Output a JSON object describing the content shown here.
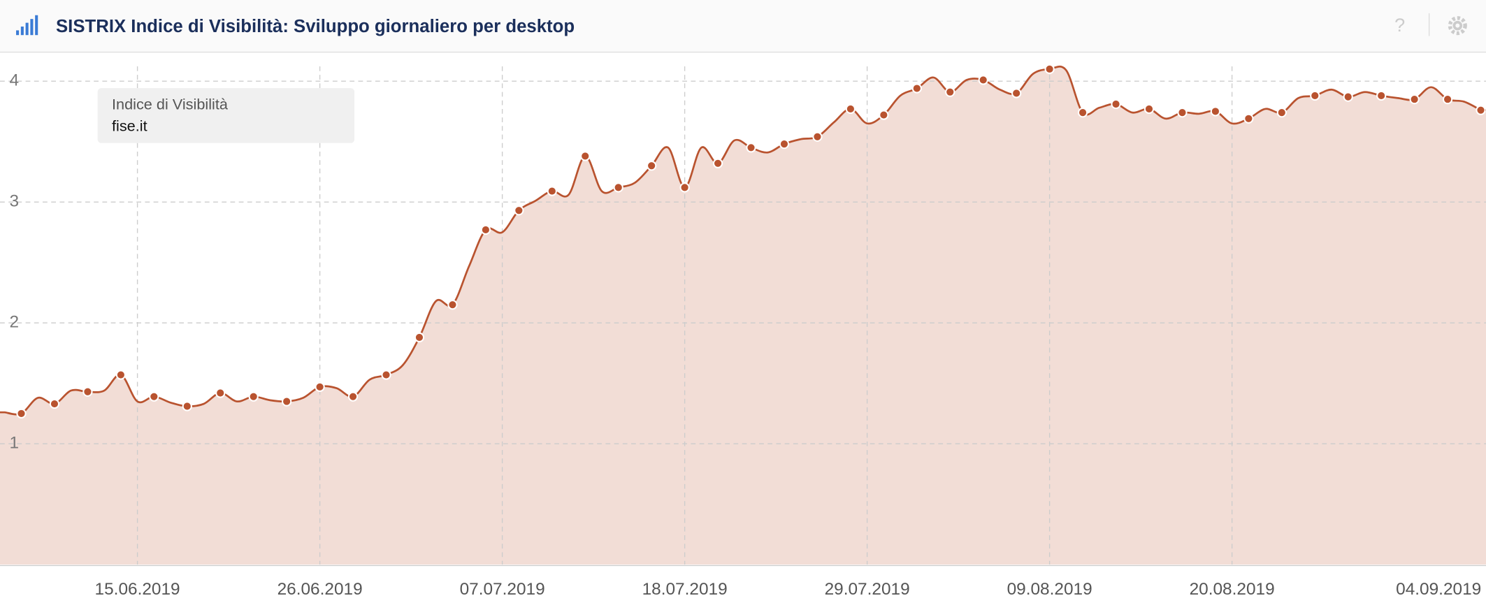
{
  "header": {
    "title": "SISTRIX Indice di Visibilità: Sviluppo giornaliero per desktop",
    "help": "?"
  },
  "chart_data": {
    "type": "area",
    "legend_title": "Indice di Visibilità",
    "x": [
      "07.06.2019",
      "08.06.2019",
      "09.06.2019",
      "10.06.2019",
      "11.06.2019",
      "12.06.2019",
      "13.06.2019",
      "14.06.2019",
      "15.06.2019",
      "16.06.2019",
      "17.06.2019",
      "18.06.2019",
      "19.06.2019",
      "20.06.2019",
      "21.06.2019",
      "22.06.2019",
      "23.06.2019",
      "24.06.2019",
      "25.06.2019",
      "26.06.2019",
      "27.06.2019",
      "28.06.2019",
      "29.06.2019",
      "30.06.2019",
      "01.07.2019",
      "02.07.2019",
      "03.07.2019",
      "04.07.2019",
      "05.07.2019",
      "06.07.2019",
      "07.07.2019",
      "08.07.2019",
      "09.07.2019",
      "10.07.2019",
      "11.07.2019",
      "12.07.2019",
      "13.07.2019",
      "14.07.2019",
      "15.07.2019",
      "16.07.2019",
      "17.07.2019",
      "18.07.2019",
      "19.07.2019",
      "20.07.2019",
      "21.07.2019",
      "22.07.2019",
      "23.07.2019",
      "24.07.2019",
      "25.07.2019",
      "26.07.2019",
      "27.07.2019",
      "28.07.2019",
      "29.07.2019",
      "30.07.2019",
      "31.07.2019",
      "01.08.2019",
      "02.08.2019",
      "03.08.2019",
      "04.08.2019",
      "05.08.2019",
      "06.08.2019",
      "07.08.2019",
      "08.08.2019",
      "09.08.2019",
      "10.08.2019",
      "11.08.2019",
      "12.08.2019",
      "13.08.2019",
      "14.08.2019",
      "15.08.2019",
      "16.08.2019",
      "17.08.2019",
      "18.08.2019",
      "19.08.2019",
      "20.08.2019",
      "21.08.2019",
      "22.08.2019",
      "23.08.2019",
      "24.08.2019",
      "25.08.2019",
      "26.08.2019",
      "27.08.2019",
      "28.08.2019",
      "29.08.2019",
      "30.08.2019",
      "31.08.2019",
      "01.09.2019",
      "02.09.2019",
      "03.09.2019",
      "04.09.2019"
    ],
    "series": [
      {
        "name": "fise.it",
        "color": "#b9532f",
        "fill": "#f2ddd6",
        "values": [
          1.26,
          1.25,
          1.38,
          1.33,
          1.44,
          1.43,
          1.44,
          1.57,
          1.35,
          1.39,
          1.34,
          1.31,
          1.33,
          1.42,
          1.35,
          1.39,
          1.36,
          1.35,
          1.38,
          1.47,
          1.46,
          1.39,
          1.53,
          1.57,
          1.65,
          1.88,
          2.18,
          2.15,
          2.47,
          2.77,
          2.75,
          2.93,
          3.01,
          3.09,
          3.06,
          3.38,
          3.09,
          3.12,
          3.16,
          3.3,
          3.45,
          3.12,
          3.45,
          3.32,
          3.51,
          3.45,
          3.41,
          3.48,
          3.52,
          3.54,
          3.66,
          3.77,
          3.65,
          3.72,
          3.88,
          3.94,
          4.03,
          3.91,
          4.01,
          4.01,
          3.93,
          3.9,
          4.06,
          4.1,
          4.09,
          3.74,
          3.78,
          3.81,
          3.74,
          3.77,
          3.69,
          3.74,
          3.73,
          3.75,
          3.65,
          3.69,
          3.77,
          3.74,
          3.86,
          3.88,
          3.93,
          3.87,
          3.91,
          3.88,
          3.86,
          3.85,
          3.95,
          3.85,
          3.83,
          3.76
        ]
      }
    ],
    "xticks": [
      "15.06.2019",
      "26.06.2019",
      "07.07.2019",
      "18.07.2019",
      "29.07.2019",
      "09.08.2019",
      "20.08.2019",
      "04.09.2019"
    ],
    "ylim": [
      0,
      4.24
    ],
    "yticks": [
      1,
      2,
      3,
      4
    ],
    "grid": true
  }
}
